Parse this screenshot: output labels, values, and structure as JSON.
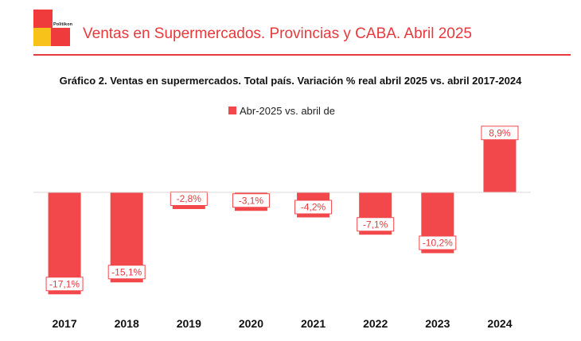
{
  "header": {
    "brand": "Politikon",
    "title": "Ventas en Supermercados. Provincias y CABA. Abril 2025"
  },
  "colors": {
    "accent": "#e8393d",
    "bar": "#f2484c",
    "logo_red": "#ef3b3b",
    "logo_yellow": "#f7c21a",
    "axis": "#d9d9d9"
  },
  "chart_data": {
    "type": "bar",
    "title": "Gráfico 2. Ventas en supermercados. Total país. Variación % real abril 2025 vs. abril 2017-2024",
    "xlabel": "",
    "ylabel": "",
    "legend": "top-center",
    "grid": false,
    "ylim": [
      -19,
      12
    ],
    "categories": [
      "2017",
      "2018",
      "2019",
      "2020",
      "2021",
      "2022",
      "2023",
      "2024"
    ],
    "series": [
      {
        "name": "Abr-2025 vs. abril de",
        "values": [
          -17.1,
          -15.1,
          -2.8,
          -3.1,
          -4.2,
          -7.1,
          -10.2,
          8.9
        ],
        "labels": [
          "-17,1%",
          "-15,1%",
          "-2,8%",
          "-3,1%",
          "-4,2%",
          "-7,1%",
          "-10,2%",
          "8,9%"
        ]
      }
    ]
  }
}
